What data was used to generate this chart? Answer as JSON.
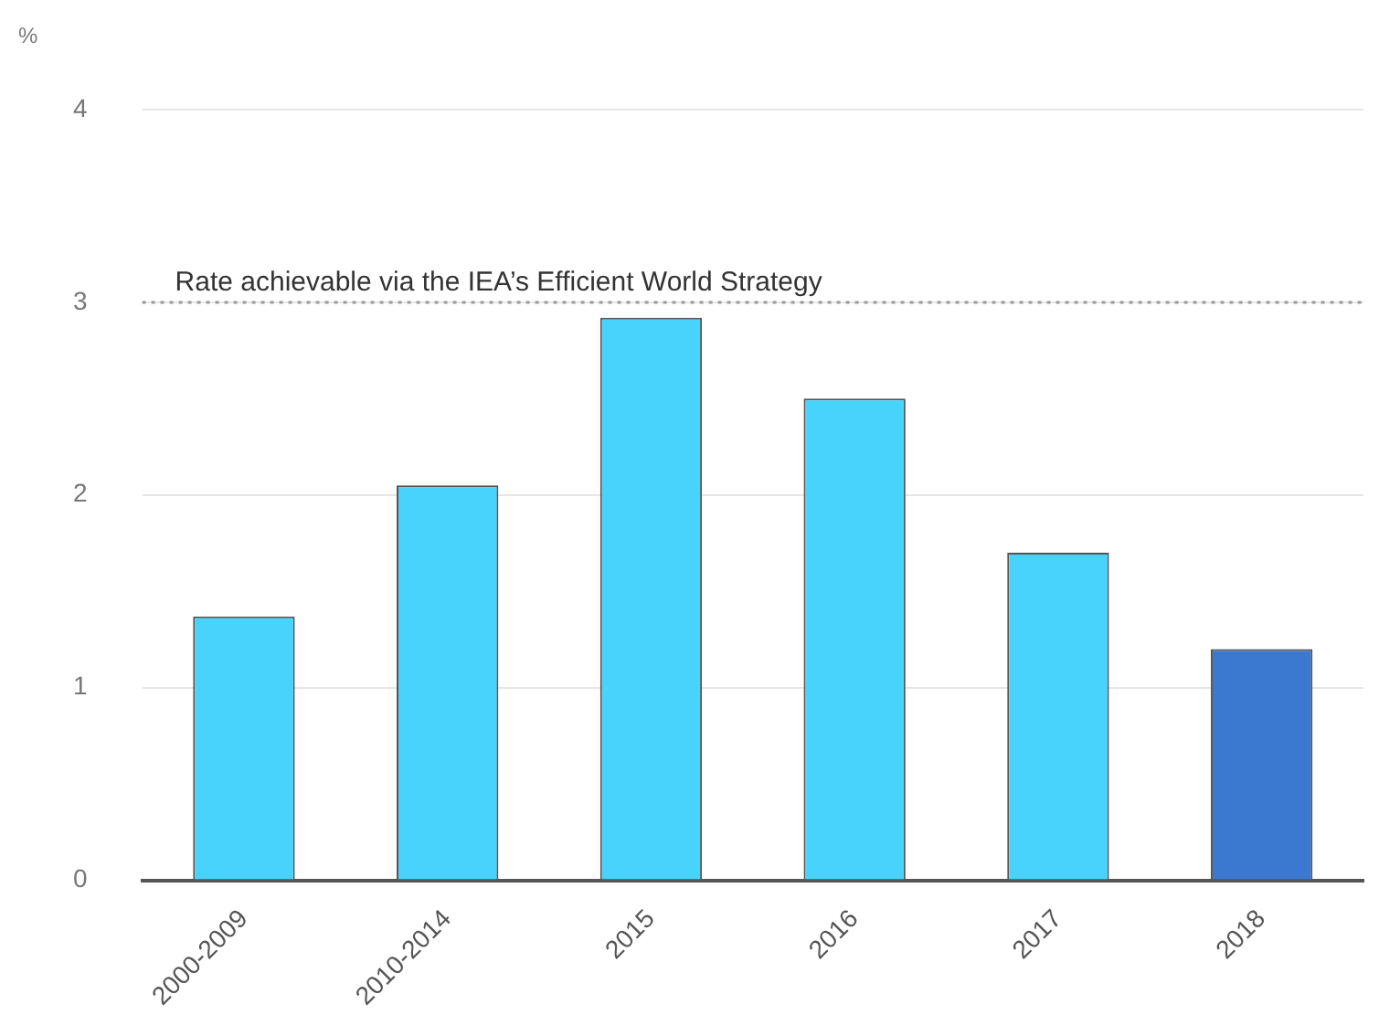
{
  "chart_data": {
    "type": "bar",
    "ylabel": "%",
    "categories": [
      "2000-2009",
      "2010-2014",
      "2015",
      "2016",
      "2017",
      "2018"
    ],
    "values": [
      1.37,
      2.05,
      2.92,
      2.5,
      1.7,
      1.2
    ],
    "colors": [
      "#48d3fd",
      "#48d3fd",
      "#48d3fd",
      "#48d3fd",
      "#48d3fd",
      "#3b78d0"
    ],
    "ylim": [
      0,
      4
    ],
    "yticks": [
      0,
      1,
      2,
      3,
      4
    ],
    "grid": "y",
    "legend": false,
    "ref_lines": [
      {
        "axis": "y",
        "value": 3,
        "label": "Rate achievable via the IEA’s Efficient World Strategy",
        "color": "#999999",
        "line_style": "dotted"
      }
    ]
  }
}
